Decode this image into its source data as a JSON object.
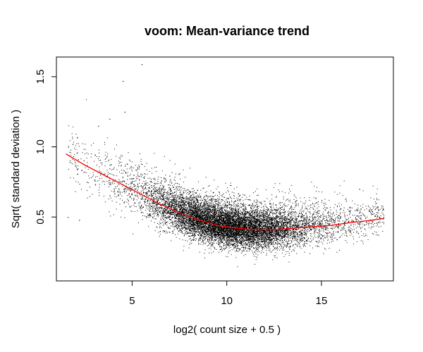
{
  "chart_data": {
    "type": "scatter",
    "title": "voom: Mean-variance trend",
    "xlabel": "log2( count size + 0.5 )",
    "ylabel": "Sqrt( standard deviation )",
    "xlim": [
      1.0,
      18.8
    ],
    "ylim": [
      0.045,
      1.64
    ],
    "xticks": [
      5,
      10,
      15
    ],
    "xtick_labels": [
      "5",
      "10",
      "15"
    ],
    "yticks": [
      0.5,
      1.0,
      1.5
    ],
    "ytick_labels": [
      "0.5",
      "1.0",
      "1.5"
    ],
    "grid": false,
    "legend": "none",
    "point_color": "#000000",
    "trend_color": "#ff0000",
    "series": [
      {
        "kind": "points",
        "approx_count": 12000,
        "x": [
          1.6,
          2.2,
          2.6,
          3.2,
          3.8,
          4.5,
          4.6,
          5.0,
          5.5,
          6.0,
          7.0,
          8.0,
          9.0,
          10.0,
          11.0,
          12.0,
          13.0,
          14.0,
          15.0,
          16.0,
          17.0,
          18.0
        ],
        "y": [
          0.5,
          0.48,
          0.75,
          1.15,
          1.2,
          1.47,
          1.25,
          0.7,
          1.59,
          0.65,
          0.55,
          0.48,
          0.42,
          0.38,
          0.4,
          0.38,
          0.42,
          0.45,
          0.62,
          0.5,
          0.7,
          0.55
        ]
      },
      {
        "kind": "trend",
        "x": [
          1.5,
          2.5,
          3.5,
          4.5,
          5.5,
          6.5,
          7.5,
          8.5,
          9.5,
          10.5,
          11.5,
          12.5,
          13.5,
          14.5,
          15.5,
          16.5,
          17.5,
          18.3
        ],
        "y": [
          0.95,
          0.87,
          0.8,
          0.73,
          0.66,
          0.59,
          0.53,
          0.48,
          0.44,
          0.42,
          0.41,
          0.41,
          0.42,
          0.43,
          0.44,
          0.46,
          0.475,
          0.49
        ]
      }
    ]
  }
}
